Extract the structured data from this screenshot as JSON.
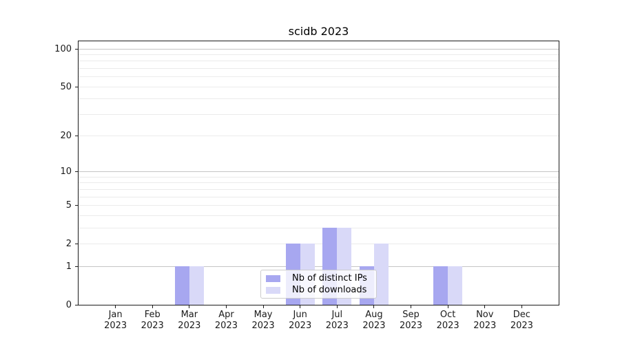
{
  "figure": {
    "background": "#ffffff"
  },
  "chart_data": {
    "type": "bar",
    "title": "scidb 2023",
    "xlabel": "",
    "ylabel": "",
    "months": [
      "Jan",
      "Feb",
      "Mar",
      "Apr",
      "May",
      "Jun",
      "Jul",
      "Aug",
      "Sep",
      "Oct",
      "Nov",
      "Dec"
    ],
    "year_label": "2023",
    "categories": [
      "Jan 2023",
      "Feb 2023",
      "Mar 2023",
      "Apr 2023",
      "May 2023",
      "Jun 2023",
      "Jul 2023",
      "Aug 2023",
      "Sep 2023",
      "Oct 2023",
      "Nov 2023",
      "Dec 2023"
    ],
    "series": [
      {
        "name": "Nb of distinct IPs",
        "color": "#a7a7f0",
        "values": [
          0,
          0,
          1,
          0,
          0,
          2,
          3,
          1,
          0,
          1,
          0,
          0
        ]
      },
      {
        "name": "Nb of downloads",
        "color": "#d9d9f8",
        "values": [
          0,
          0,
          1,
          0,
          0,
          2,
          3,
          2,
          0,
          1,
          0,
          0
        ]
      }
    ],
    "yscale": "log1p",
    "ylim": [
      0,
      115
    ],
    "y_ticks": [
      0,
      1,
      2,
      5,
      10,
      20,
      50,
      100
    ],
    "y_minor_gridlines": [
      3,
      4,
      6,
      7,
      8,
      9,
      30,
      40,
      60,
      70,
      80,
      90
    ],
    "y_decade_gridlines": [
      1,
      10,
      100
    ],
    "grid": "horizontal",
    "legend_position": "lower center"
  },
  "colors": {
    "grid_decade": "#c4c4c4",
    "grid_minor": "#ebebeb",
    "spine": "#1a1a1a",
    "tick_label": "#1a1a1a",
    "legend_border": "#cccccc",
    "legend_background": "rgba(255,255,255,0.8)"
  }
}
